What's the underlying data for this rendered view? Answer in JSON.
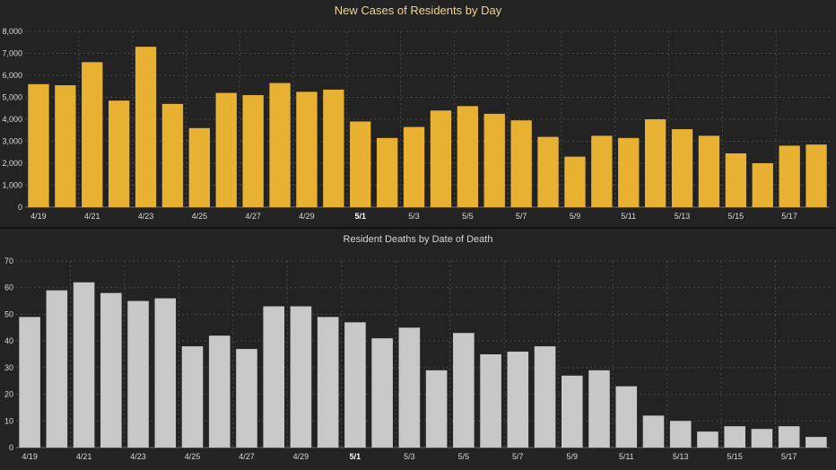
{
  "colors": {
    "background": "#232323",
    "cases_bar": "#e8b132",
    "deaths_bar": "#c8c8c8"
  },
  "chart_data": [
    {
      "type": "bar",
      "title": "New Cases of Residents by Day",
      "xlabel": "",
      "ylabel": "",
      "ylim": [
        0,
        8000
      ],
      "grid": true,
      "yticks": [
        "0",
        "1,000",
        "2,000",
        "3,000",
        "4,000",
        "5,000",
        "6,000",
        "7,000",
        "8,000"
      ],
      "ytick_values": [
        0,
        1000,
        2000,
        3000,
        4000,
        5000,
        6000,
        7000,
        8000
      ],
      "xtick_labels": [
        {
          "index": 0,
          "label": "4/19",
          "bold": false
        },
        {
          "index": 2,
          "label": "4/21",
          "bold": false
        },
        {
          "index": 4,
          "label": "4/23",
          "bold": false
        },
        {
          "index": 6,
          "label": "4/25",
          "bold": false
        },
        {
          "index": 8,
          "label": "4/27",
          "bold": false
        },
        {
          "index": 10,
          "label": "4/29",
          "bold": false
        },
        {
          "index": 12,
          "label": "5/1",
          "bold": true
        },
        {
          "index": 14,
          "label": "5/3",
          "bold": false
        },
        {
          "index": 16,
          "label": "5/5",
          "bold": false
        },
        {
          "index": 18,
          "label": "5/7",
          "bold": false
        },
        {
          "index": 20,
          "label": "5/9",
          "bold": false
        },
        {
          "index": 22,
          "label": "5/11",
          "bold": false
        },
        {
          "index": 24,
          "label": "5/13",
          "bold": false
        },
        {
          "index": 26,
          "label": "5/15",
          "bold": false
        },
        {
          "index": 28,
          "label": "5/17",
          "bold": false
        }
      ],
      "categories": [
        "4/19",
        "4/20",
        "4/21",
        "4/22",
        "4/23",
        "4/24",
        "4/25",
        "4/26",
        "4/27",
        "4/28",
        "4/29",
        "4/30",
        "5/1",
        "5/2",
        "5/3",
        "5/4",
        "5/5",
        "5/6",
        "5/7",
        "5/8",
        "5/9",
        "5/10",
        "5/11",
        "5/12",
        "5/13",
        "5/14",
        "5/15",
        "5/16",
        "5/17",
        "5/18"
      ],
      "values": [
        5600,
        5550,
        6600,
        4850,
        7300,
        4700,
        3600,
        5200,
        5100,
        5650,
        5250,
        5350,
        3900,
        3150,
        3650,
        4400,
        4600,
        4250,
        3950,
        3200,
        2300,
        3250,
        3150,
        4000,
        3550,
        3250,
        2450,
        2000,
        2800,
        2850
      ]
    },
    {
      "type": "bar",
      "title": "Resident Deaths by Date of Death",
      "xlabel": "",
      "ylabel": "",
      "ylim": [
        0,
        70
      ],
      "grid": true,
      "yticks": [
        "0",
        "10",
        "20",
        "30",
        "40",
        "50",
        "60",
        "70"
      ],
      "ytick_values": [
        0,
        10,
        20,
        30,
        40,
        50,
        60,
        70
      ],
      "xtick_labels": [
        {
          "index": 0,
          "label": "4/19",
          "bold": false
        },
        {
          "index": 2,
          "label": "4/21",
          "bold": false
        },
        {
          "index": 4,
          "label": "4/23",
          "bold": false
        },
        {
          "index": 6,
          "label": "4/25",
          "bold": false
        },
        {
          "index": 8,
          "label": "4/27",
          "bold": false
        },
        {
          "index": 10,
          "label": "4/29",
          "bold": false
        },
        {
          "index": 12,
          "label": "5/1",
          "bold": true
        },
        {
          "index": 14,
          "label": "5/3",
          "bold": false
        },
        {
          "index": 16,
          "label": "5/5",
          "bold": false
        },
        {
          "index": 18,
          "label": "5/7",
          "bold": false
        },
        {
          "index": 20,
          "label": "5/9",
          "bold": false
        },
        {
          "index": 22,
          "label": "5/11",
          "bold": false
        },
        {
          "index": 24,
          "label": "5/13",
          "bold": false
        },
        {
          "index": 26,
          "label": "5/15",
          "bold": false
        },
        {
          "index": 28,
          "label": "5/17",
          "bold": false
        }
      ],
      "categories": [
        "4/19",
        "4/20",
        "4/21",
        "4/22",
        "4/23",
        "4/24",
        "4/25",
        "4/26",
        "4/27",
        "4/28",
        "4/29",
        "4/30",
        "5/1",
        "5/2",
        "5/3",
        "5/4",
        "5/5",
        "5/6",
        "5/7",
        "5/8",
        "5/9",
        "5/10",
        "5/11",
        "5/12",
        "5/13",
        "5/14",
        "5/15",
        "5/16",
        "5/17",
        "5/18"
      ],
      "values": [
        49,
        59,
        62,
        58,
        55,
        56,
        38,
        42,
        37,
        53,
        53,
        49,
        47,
        41,
        45,
        29,
        43,
        35,
        36,
        38,
        27,
        29,
        23,
        12,
        10,
        6,
        8,
        7,
        8,
        4
      ]
    }
  ]
}
